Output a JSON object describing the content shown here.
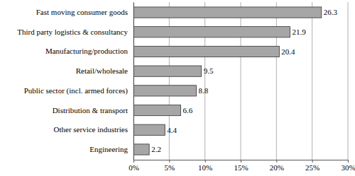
{
  "chart_data": {
    "type": "bar",
    "orientation": "horizontal",
    "categories": [
      "Fast moving consumer goods",
      "Third party logistics & consultancy",
      "Manufacturing/production",
      "Retail/wholesale",
      "Public sector (incl. armed forces)",
      "Distribution & transport",
      "Other service industries",
      "Engineering"
    ],
    "values": [
      26.3,
      21.9,
      20.4,
      9.5,
      8.8,
      6.6,
      4.4,
      2.2
    ],
    "color": "#a6a6a6",
    "xlim": [
      0,
      30
    ],
    "xticks": [
      {
        "value": 0,
        "label": "0%"
      },
      {
        "value": 5,
        "label": "5%"
      },
      {
        "value": 10,
        "label": "10%"
      },
      {
        "value": 15,
        "label": "15%"
      },
      {
        "value": 20,
        "label": "20%"
      },
      {
        "value": 25,
        "label": "25%"
      },
      {
        "value": 30,
        "label": "30%"
      }
    ],
    "grid": true,
    "data_labels": true
  }
}
